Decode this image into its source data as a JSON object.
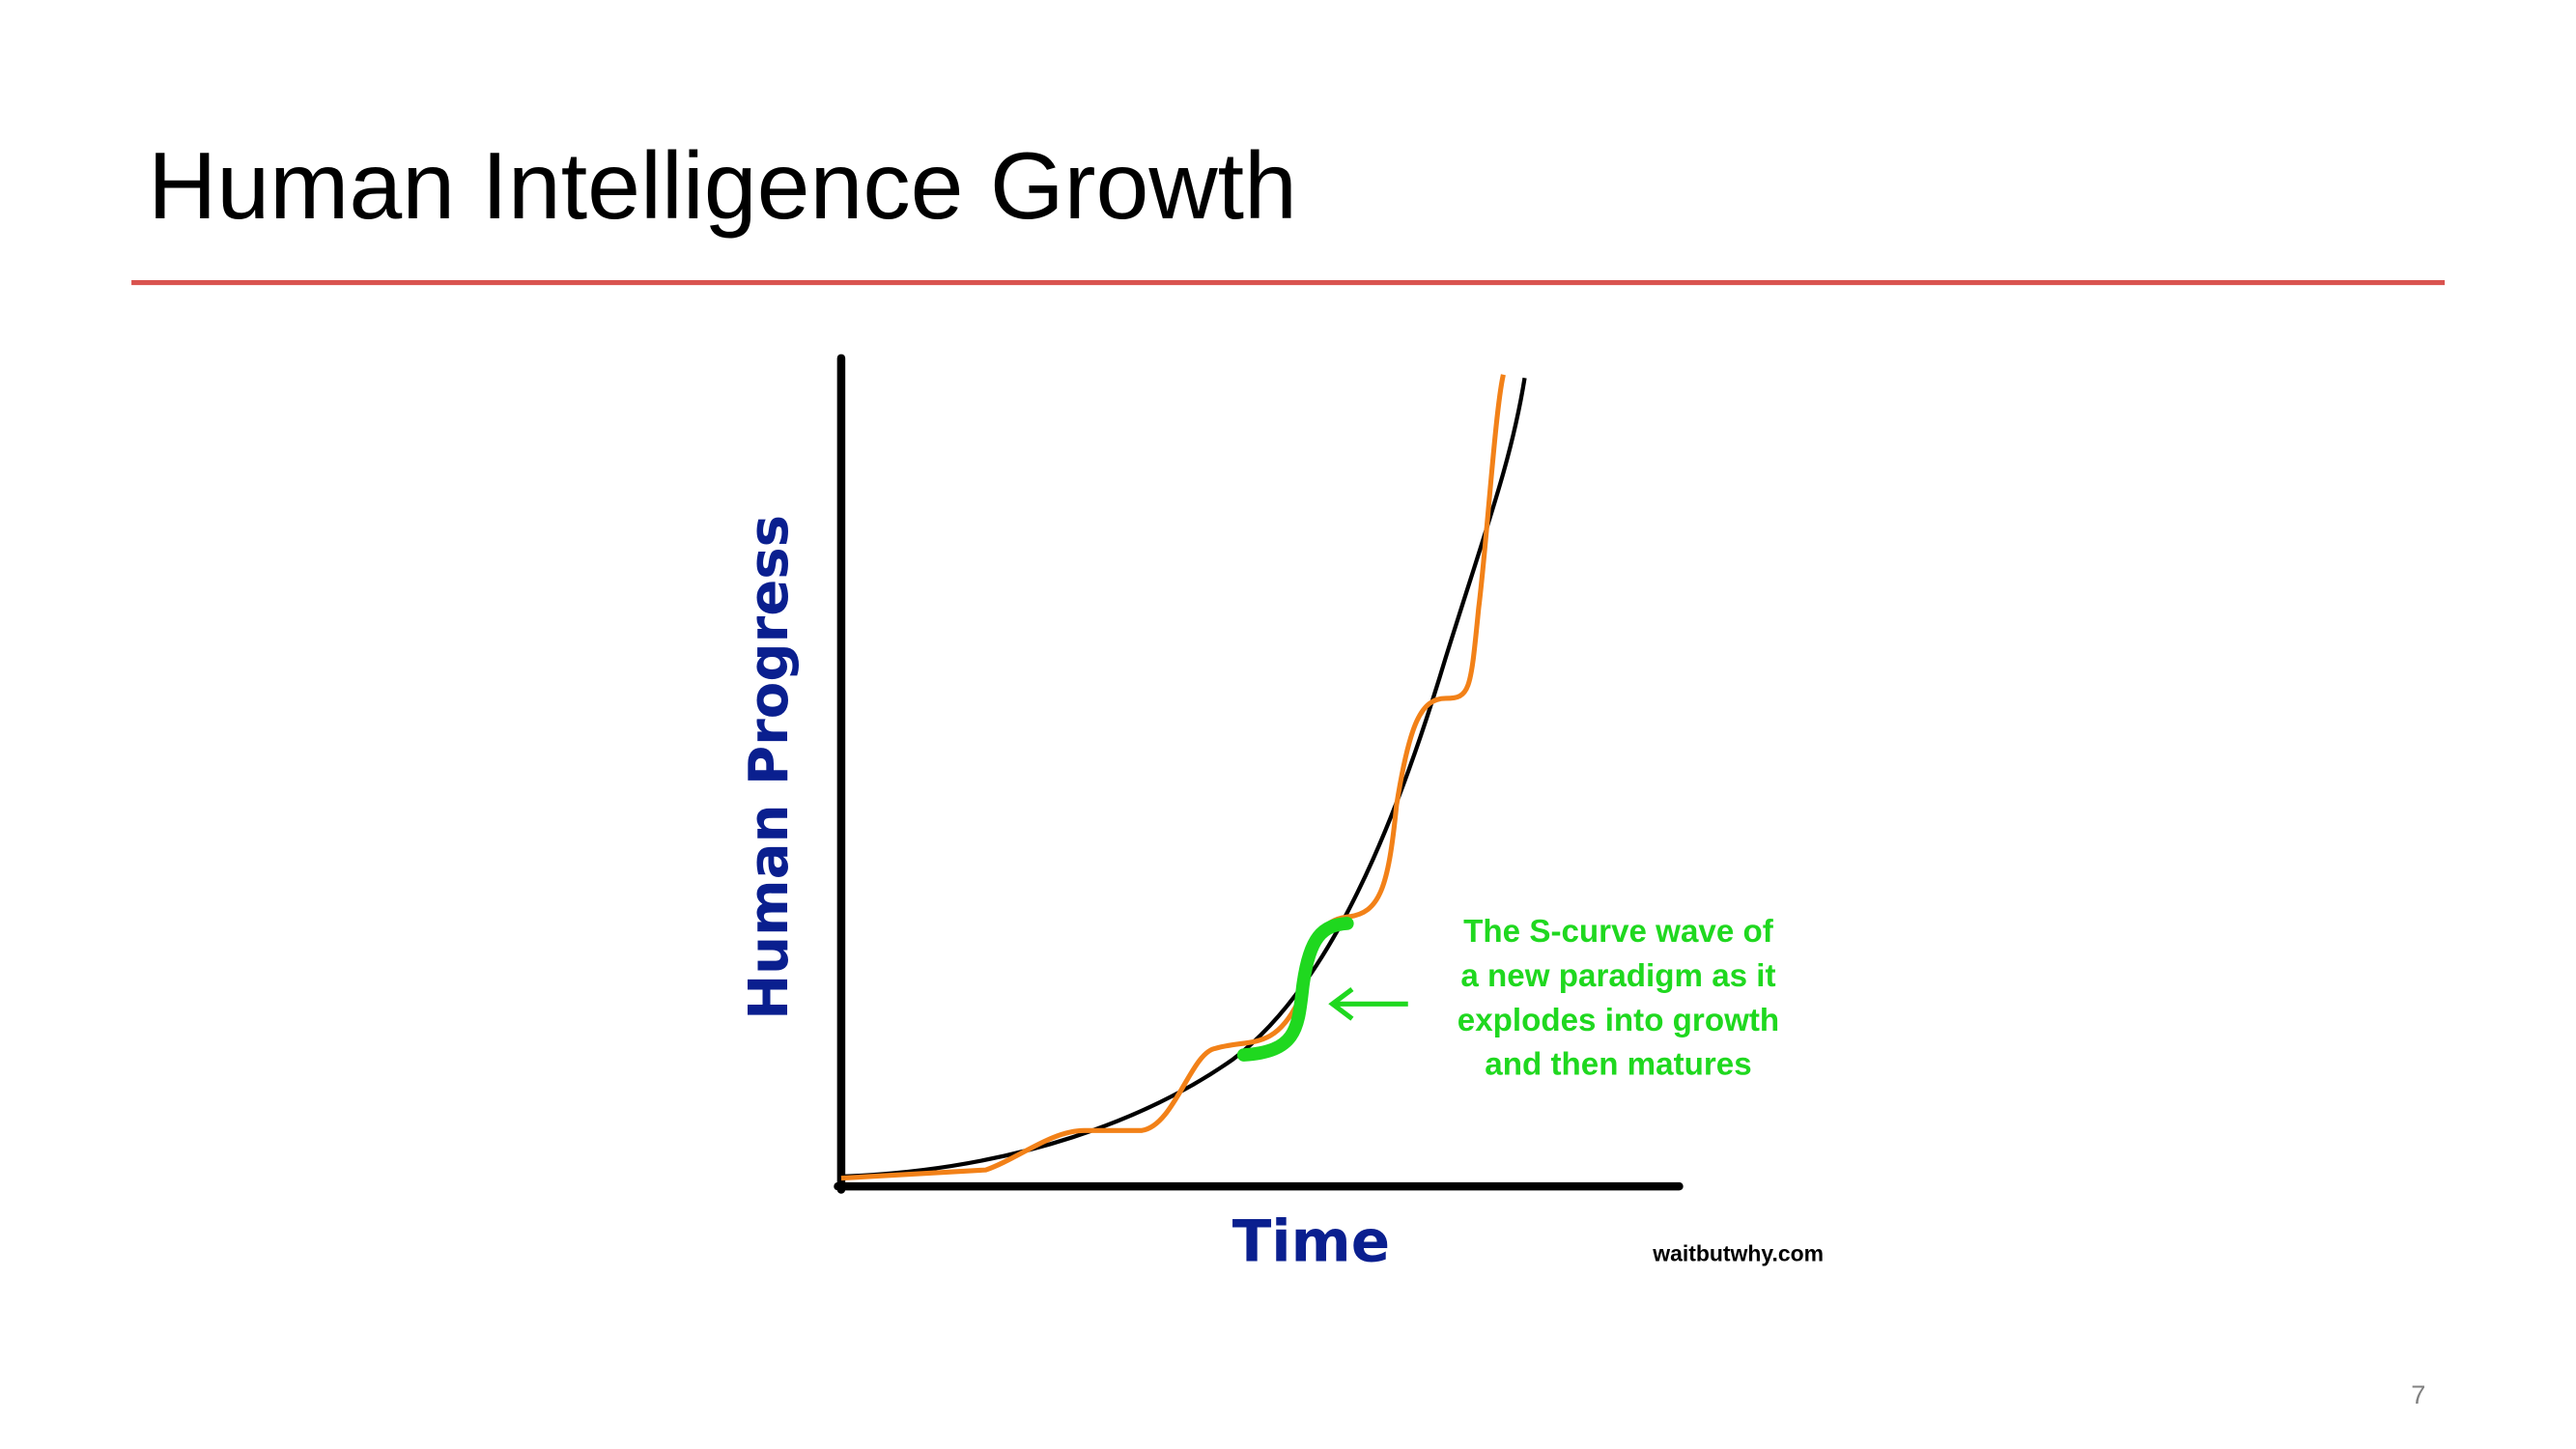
{
  "header": {
    "title": "Human Intelligence Growth"
  },
  "illustration": {
    "y_label": "Human Progress",
    "x_label": "Time",
    "annotation": [
      "The S-curve wave of",
      "a new paradigm as it",
      "explodes into growth",
      "and then matures"
    ],
    "source": "waitbutwhy.com"
  },
  "footer": {
    "page_number": "7"
  }
}
